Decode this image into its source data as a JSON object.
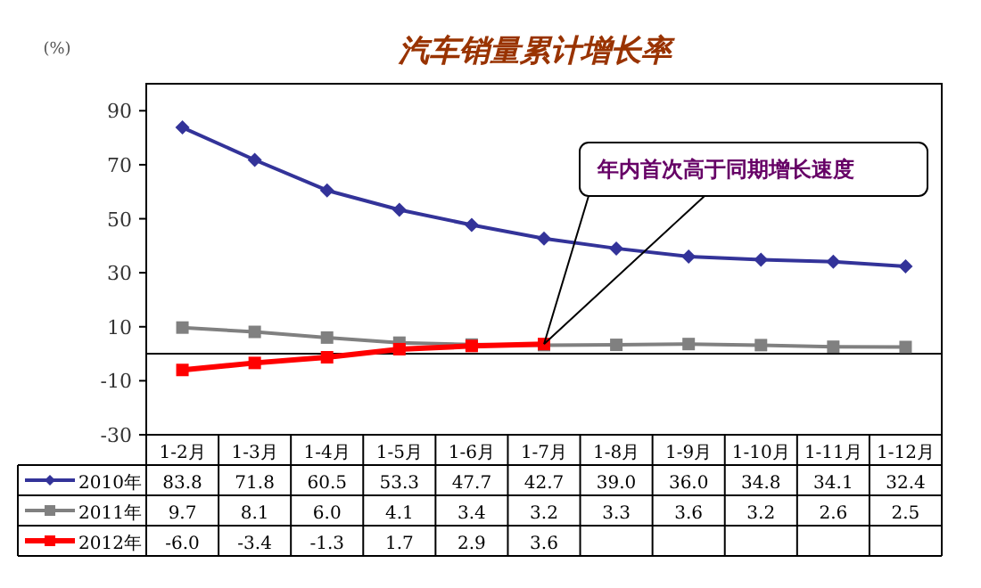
{
  "chart_data": {
    "type": "line",
    "title": "汽车销量累计增长率",
    "ylabel": "(%)",
    "categories": [
      "1-2月",
      "1-3月",
      "1-4月",
      "1-5月",
      "1-6月",
      "1-7月",
      "1-8月",
      "1-9月",
      "1-10月",
      "1-11月",
      "1-12月"
    ],
    "series": [
      {
        "name": "2010年",
        "color": "#333399",
        "marker": "diamond",
        "values": [
          83.8,
          71.8,
          60.5,
          53.3,
          47.7,
          42.7,
          39.0,
          36.0,
          34.8,
          34.1,
          32.4
        ]
      },
      {
        "name": "2011年",
        "color": "#808080",
        "marker": "square",
        "values": [
          9.7,
          8.1,
          6.0,
          4.1,
          3.4,
          3.2,
          3.3,
          3.6,
          3.2,
          2.6,
          2.5
        ]
      },
      {
        "name": "2012年",
        "color": "#ff0000",
        "marker": "square",
        "values": [
          -6.0,
          -3.4,
          -1.3,
          1.7,
          2.9,
          3.6,
          null,
          null,
          null,
          null,
          null
        ]
      }
    ],
    "ylim": [
      -30,
      100
    ],
    "yticks": [
      -30,
      -10,
      10,
      30,
      50,
      70,
      90
    ],
    "value_labels": [
      [
        "83.8",
        "71.8",
        "60.5",
        "53.3",
        "47.7",
        "42.7",
        "39.0",
        "36.0",
        "34.8",
        "34.1",
        "32.4"
      ],
      [
        "9.7",
        "8.1",
        "6.0",
        "4.1",
        "3.4",
        "3.2",
        "3.3",
        "3.6",
        "3.2",
        "2.6",
        "2.5"
      ],
      [
        "-6.0",
        "-3.4",
        "-1.3",
        "1.7",
        "2.9",
        "3.6",
        null,
        null,
        null,
        null,
        null
      ]
    ],
    "legend": "bottom left",
    "grid": false,
    "annotations": [
      {
        "text": "年内首次高于同期增长速度",
        "x": "1-7月",
        "y": 3.6
      }
    ]
  }
}
